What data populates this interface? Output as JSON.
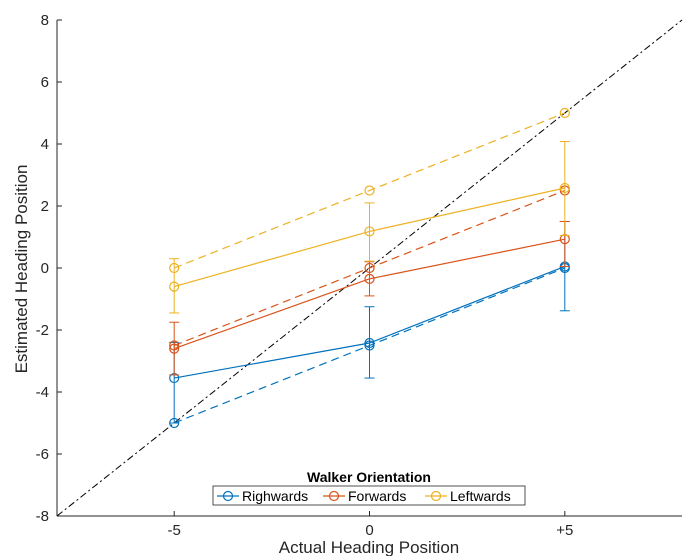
{
  "chart_data": {
    "type": "line",
    "xlabel": "Actual Heading Position",
    "ylabel": "Estimated Heading Position",
    "x": [
      -5,
      0,
      5
    ],
    "xtick_labels": [
      "-5",
      "0",
      "+5"
    ],
    "xlim": [
      -8,
      8
    ],
    "ylim": [
      -8,
      8
    ],
    "yticks": [
      -8,
      -6,
      -4,
      -2,
      0,
      2,
      4,
      6,
      8
    ],
    "ytick_labels": [
      "-8",
      "-6",
      "-4",
      "-2",
      "0",
      "2",
      "4",
      "6",
      "8"
    ],
    "grid": false,
    "legend": {
      "title": "Walker Orientation",
      "placement": "bottom-center"
    },
    "reference_line": {
      "style": "dash-dot",
      "color": "#000000",
      "x": [
        -8,
        8
      ],
      "y": [
        -8,
        8
      ]
    },
    "series": [
      {
        "name": "Righwards",
        "color": "#0072BD",
        "estimated": [
          -3.55,
          -2.42,
          0.05
        ],
        "error_low": [
          -5.0,
          -3.55,
          -1.38
        ],
        "error_high": [
          -2.4,
          -1.25,
          1.5
        ],
        "expected": [
          -5.0,
          -2.5,
          0.0
        ]
      },
      {
        "name": "Forwards",
        "color": "#D95319",
        "estimated": [
          -2.6,
          -0.35,
          0.93
        ],
        "error_low": [
          -3.45,
          -0.9,
          0.05
        ],
        "error_high": [
          -1.75,
          0.2,
          1.5
        ],
        "expected": [
          -2.5,
          0.0,
          2.5
        ]
      },
      {
        "name": "Leftwards",
        "color": "#EDB120",
        "estimated": [
          -0.6,
          1.18,
          2.58
        ],
        "error_low": [
          -1.45,
          0.22,
          1.05
        ],
        "error_high": [
          0.3,
          2.1,
          4.08
        ],
        "expected": [
          0.0,
          2.5,
          5.0
        ]
      }
    ]
  }
}
